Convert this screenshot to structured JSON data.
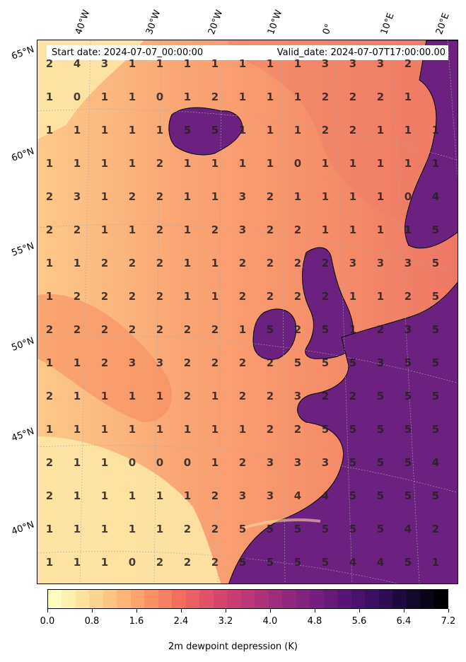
{
  "header": {
    "start_date": "Start date: 2024-07-07_00:00:00",
    "valid_date": "Valid_date: 2024-07-07T17:00:00.00"
  },
  "longitude_labels": [
    "40°W",
    "30°W",
    "20°W",
    "10°W",
    "0°",
    "10°E",
    "20°E"
  ],
  "latitude_labels": [
    "65°N",
    "60°N",
    "55°N",
    "50°N",
    "45°N",
    "40°N"
  ],
  "grid_values": [
    [
      "2",
      "4",
      "3",
      "1",
      "1",
      "1",
      "1",
      "1",
      "1",
      "1",
      "3",
      "3",
      "3",
      "2",
      ""
    ],
    [
      "1",
      "0",
      "1",
      "1",
      "0",
      "1",
      "2",
      "1",
      "1",
      "1",
      "2",
      "2",
      "2",
      "1",
      ""
    ],
    [
      "1",
      "1",
      "1",
      "1",
      "1",
      "5",
      "5",
      "1",
      "1",
      "1",
      "2",
      "2",
      "1",
      "1",
      "1"
    ],
    [
      "1",
      "1",
      "1",
      "1",
      "2",
      "1",
      "1",
      "1",
      "1",
      "0",
      "1",
      "1",
      "1",
      "1",
      "1"
    ],
    [
      "2",
      "3",
      "1",
      "2",
      "2",
      "1",
      "1",
      "3",
      "2",
      "1",
      "1",
      "1",
      "1",
      "0",
      "4"
    ],
    [
      "2",
      "2",
      "1",
      "1",
      "2",
      "1",
      "2",
      "3",
      "2",
      "2",
      "1",
      "1",
      "1",
      "1",
      "5"
    ],
    [
      "1",
      "1",
      "2",
      "2",
      "2",
      "1",
      "1",
      "2",
      "2",
      "2",
      "2",
      "3",
      "3",
      "3",
      "5"
    ],
    [
      "1",
      "2",
      "2",
      "2",
      "2",
      "1",
      "1",
      "2",
      "2",
      "2",
      "2",
      "1",
      "1",
      "2",
      "5"
    ],
    [
      "2",
      "2",
      "2",
      "2",
      "2",
      "2",
      "2",
      "1",
      "5",
      "2",
      "5",
      "1",
      "2",
      "3",
      "5"
    ],
    [
      "1",
      "1",
      "2",
      "3",
      "3",
      "2",
      "2",
      "2",
      "2",
      "5",
      "5",
      "5",
      "3",
      "5",
      "5"
    ],
    [
      "2",
      "1",
      "1",
      "1",
      "1",
      "2",
      "1",
      "2",
      "2",
      "3",
      "2",
      "2",
      "5",
      "5",
      "5"
    ],
    [
      "1",
      "1",
      "1",
      "1",
      "1",
      "1",
      "1",
      "1",
      "2",
      "2",
      "5",
      "5",
      "5",
      "5",
      "5"
    ],
    [
      "2",
      "1",
      "1",
      "0",
      "0",
      "0",
      "1",
      "2",
      "3",
      "3",
      "3",
      "5",
      "5",
      "5",
      "4"
    ],
    [
      "2",
      "1",
      "1",
      "1",
      "1",
      "1",
      "2",
      "3",
      "3",
      "4",
      "4",
      "5",
      "5",
      "5",
      "5"
    ],
    [
      "1",
      "1",
      "1",
      "1",
      "1",
      "2",
      "2",
      "5",
      "5",
      "5",
      "5",
      "5",
      "5",
      "4",
      "2"
    ],
    [
      "1",
      "1",
      "1",
      "0",
      "2",
      "2",
      "2",
      "5",
      "5",
      "5",
      "5",
      "4",
      "4",
      "5",
      "1"
    ]
  ],
  "colorbar": {
    "ticks": [
      "0.0",
      "0.8",
      "1.6",
      "2.4",
      "3.2",
      "4.0",
      "4.8",
      "5.6",
      "6.4",
      "7.2"
    ],
    "min": 0.0,
    "max": 7.2,
    "levels": 29,
    "title": "2m dewpoint depression (K)"
  },
  "colors": {
    "low": "#fcf3b4",
    "mid": "#f88a66",
    "high": "#6a1f7c",
    "max": "#000004",
    "land_dry": "#6c2180",
    "coastline": "#000000"
  }
}
